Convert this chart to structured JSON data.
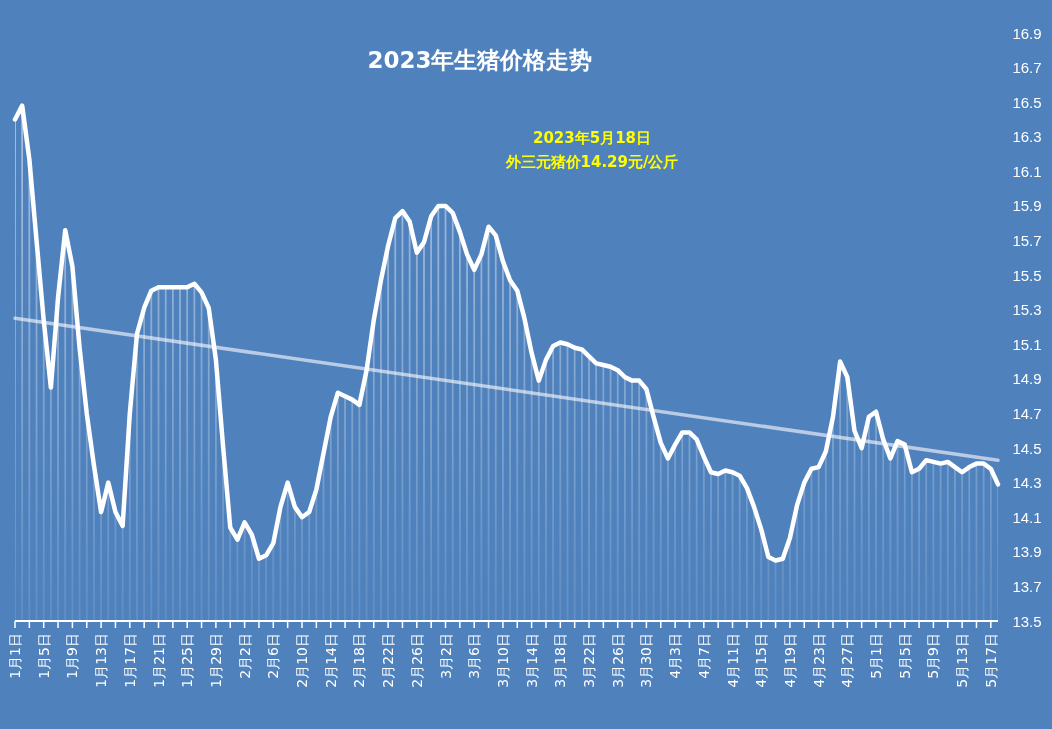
{
  "chart_data": {
    "type": "line",
    "title": "2023年生猪价格走势",
    "annotations": [
      "2023年5月18日",
      "外三元猪价14.29元/公斤"
    ],
    "x": [
      "2023-01-01",
      "2023-01-02",
      "2023-01-03",
      "2023-01-04",
      "2023-01-05",
      "2023-01-06",
      "2023-01-07",
      "2023-01-08",
      "2023-01-09",
      "2023-01-10",
      "2023-01-11",
      "2023-01-12",
      "2023-01-13",
      "2023-01-14",
      "2023-01-15",
      "2023-01-16",
      "2023-01-17",
      "2023-01-18",
      "2023-01-19",
      "2023-01-20",
      "2023-01-21",
      "2023-01-22",
      "2023-01-23",
      "2023-01-24",
      "2023-01-25",
      "2023-01-26",
      "2023-01-27",
      "2023-01-28",
      "2023-01-29",
      "2023-01-30",
      "2023-01-31",
      "2023-02-01",
      "2023-02-02",
      "2023-02-03",
      "2023-02-04",
      "2023-02-05",
      "2023-02-06",
      "2023-02-07",
      "2023-02-08",
      "2023-02-09",
      "2023-02-10",
      "2023-02-11",
      "2023-02-12",
      "2023-02-13",
      "2023-02-14",
      "2023-02-15",
      "2023-02-16",
      "2023-02-17",
      "2023-02-18",
      "2023-02-19",
      "2023-02-20",
      "2023-02-21",
      "2023-02-22",
      "2023-02-23",
      "2023-02-24",
      "2023-02-25",
      "2023-02-26",
      "2023-02-27",
      "2023-02-28",
      "2023-03-01",
      "2023-03-02",
      "2023-03-03",
      "2023-03-04",
      "2023-03-05",
      "2023-03-06",
      "2023-03-07",
      "2023-03-08",
      "2023-03-09",
      "2023-03-10",
      "2023-03-11",
      "2023-03-12",
      "2023-03-13",
      "2023-03-14",
      "2023-03-15",
      "2023-03-16",
      "2023-03-17",
      "2023-03-18",
      "2023-03-19",
      "2023-03-20",
      "2023-03-21",
      "2023-03-22",
      "2023-03-23",
      "2023-03-24",
      "2023-03-25",
      "2023-03-26",
      "2023-03-27",
      "2023-03-28",
      "2023-03-29",
      "2023-03-30",
      "2023-03-31",
      "2023-04-01",
      "2023-04-02",
      "2023-04-03",
      "2023-04-04",
      "2023-04-05",
      "2023-04-06",
      "2023-04-07",
      "2023-04-08",
      "2023-04-09",
      "2023-04-10",
      "2023-04-11",
      "2023-04-12",
      "2023-04-13",
      "2023-04-14",
      "2023-04-15",
      "2023-04-16",
      "2023-04-17",
      "2023-04-18",
      "2023-04-19",
      "2023-04-20",
      "2023-04-21",
      "2023-04-22",
      "2023-04-23",
      "2023-04-24",
      "2023-04-25",
      "2023-04-26",
      "2023-04-27",
      "2023-04-28",
      "2023-04-29",
      "2023-04-30",
      "2023-05-01",
      "2023-05-02",
      "2023-05-03",
      "2023-05-04",
      "2023-05-05",
      "2023-05-06",
      "2023-05-07",
      "2023-05-08",
      "2023-05-09",
      "2023-05-10",
      "2023-05-11",
      "2023-05-12",
      "2023-05-13",
      "2023-05-14",
      "2023-05-15",
      "2023-05-16",
      "2023-05-17",
      "2023-05-18"
    ],
    "series": [
      {
        "type": "area",
        "color": "#ffffff",
        "values": [
          16.4,
          16.48,
          16.17,
          15.7,
          15.24,
          14.85,
          15.37,
          15.76,
          15.55,
          15.08,
          14.7,
          14.4,
          14.13,
          14.3,
          14.13,
          14.05,
          14.7,
          15.16,
          15.31,
          15.41,
          15.43,
          15.43,
          15.43,
          15.43,
          15.43,
          15.45,
          15.4,
          15.31,
          15.01,
          14.51,
          14.04,
          13.97,
          14.07,
          14.0,
          13.86,
          13.88,
          13.95,
          14.16,
          14.3,
          14.16,
          14.1,
          14.13,
          14.26,
          14.47,
          14.68,
          14.82,
          14.8,
          14.78,
          14.75,
          14.95,
          15.24,
          15.47,
          15.67,
          15.83,
          15.87,
          15.81,
          15.63,
          15.69,
          15.84,
          15.9,
          15.9,
          15.86,
          15.75,
          15.62,
          15.53,
          15.62,
          15.78,
          15.73,
          15.58,
          15.47,
          15.41,
          15.25,
          15.05,
          14.89,
          15.01,
          15.09,
          15.11,
          15.1,
          15.08,
          15.07,
          15.03,
          14.99,
          14.98,
          14.97,
          14.95,
          14.91,
          14.89,
          14.89,
          14.84,
          14.68,
          14.53,
          14.44,
          14.52,
          14.59,
          14.59,
          14.55,
          14.45,
          14.36,
          14.35,
          14.37,
          14.36,
          14.34,
          14.27,
          14.16,
          14.03,
          13.87,
          13.85,
          13.86,
          13.98,
          14.17,
          14.3,
          14.38,
          14.39,
          14.48,
          14.68,
          15.0,
          14.91,
          14.6,
          14.5,
          14.68,
          14.71,
          14.55,
          14.44,
          14.54,
          14.52,
          14.36,
          14.38,
          14.43,
          14.42,
          14.41,
          14.42,
          14.39,
          14.36,
          14.39,
          14.41,
          14.41,
          14.38,
          14.29
        ]
      },
      {
        "color": "#b9cbe5",
        "x": [
          "2023-01-01",
          "2023-05-18"
        ],
        "values": [
          15.25,
          14.43
        ]
      }
    ],
    "xlim": [
      "2023-01-01",
      "2023-05-18"
    ],
    "xticks": [
      {
        "value": "2023-01-01",
        "label": "1月1日"
      },
      {
        "value": "2023-01-03",
        "label": null
      },
      {
        "value": "2023-01-05",
        "label": "1月5日"
      },
      {
        "value": "2023-01-07",
        "label": null
      },
      {
        "value": "2023-01-09",
        "label": "1月9日"
      },
      {
        "value": "2023-01-11",
        "label": null
      },
      {
        "value": "2023-01-13",
        "label": "1月13日"
      },
      {
        "value": "2023-01-15",
        "label": null
      },
      {
        "value": "2023-01-17",
        "label": "1月17日"
      },
      {
        "value": "2023-01-19",
        "label": null
      },
      {
        "value": "2023-01-21",
        "label": "1月21日"
      },
      {
        "value": "2023-01-23",
        "label": null
      },
      {
        "value": "2023-01-25",
        "label": "1月25日"
      },
      {
        "value": "2023-01-27",
        "label": null
      },
      {
        "value": "2023-01-29",
        "label": "1月29日"
      },
      {
        "value": "2023-01-31",
        "label": null
      },
      {
        "value": "2023-02-02",
        "label": "2月2日"
      },
      {
        "value": "2023-02-04",
        "label": null
      },
      {
        "value": "2023-02-06",
        "label": "2月6日"
      },
      {
        "value": "2023-02-08",
        "label": null
      },
      {
        "value": "2023-02-10",
        "label": "2月10日"
      },
      {
        "value": "2023-02-12",
        "label": null
      },
      {
        "value": "2023-02-14",
        "label": "2月14日"
      },
      {
        "value": "2023-02-16",
        "label": null
      },
      {
        "value": "2023-02-18",
        "label": "2月18日"
      },
      {
        "value": "2023-02-20",
        "label": null
      },
      {
        "value": "2023-02-22",
        "label": "2月22日"
      },
      {
        "value": "2023-02-24",
        "label": null
      },
      {
        "value": "2023-02-26",
        "label": "2月26日"
      },
      {
        "value": "2023-02-28",
        "label": null
      },
      {
        "value": "2023-03-02",
        "label": "3月2日"
      },
      {
        "value": "2023-03-04",
        "label": null
      },
      {
        "value": "2023-03-06",
        "label": "3月6日"
      },
      {
        "value": "2023-03-08",
        "label": null
      },
      {
        "value": "2023-03-10",
        "label": "3月10日"
      },
      {
        "value": "2023-03-12",
        "label": null
      },
      {
        "value": "2023-03-14",
        "label": "3月14日"
      },
      {
        "value": "2023-03-16",
        "label": null
      },
      {
        "value": "2023-03-18",
        "label": "3月18日"
      },
      {
        "value": "2023-03-20",
        "label": null
      },
      {
        "value": "2023-03-22",
        "label": "3月22日"
      },
      {
        "value": "2023-03-24",
        "label": null
      },
      {
        "value": "2023-03-26",
        "label": "3月26日"
      },
      {
        "value": "2023-03-28",
        "label": null
      },
      {
        "value": "2023-03-30",
        "label": "3月30日"
      },
      {
        "value": "2023-04-01",
        "label": null
      },
      {
        "value": "2023-04-03",
        "label": "4月3日"
      },
      {
        "value": "2023-04-05",
        "label": null
      },
      {
        "value": "2023-04-07",
        "label": "4月7日"
      },
      {
        "value": "2023-04-09",
        "label": null
      },
      {
        "value": "2023-04-11",
        "label": "4月11日"
      },
      {
        "value": "2023-04-13",
        "label": null
      },
      {
        "value": "2023-04-15",
        "label": "4月15日"
      },
      {
        "value": "2023-04-17",
        "label": null
      },
      {
        "value": "2023-04-19",
        "label": "4月19日"
      },
      {
        "value": "2023-04-21",
        "label": null
      },
      {
        "value": "2023-04-23",
        "label": "4月23日"
      },
      {
        "value": "2023-04-25",
        "label": null
      },
      {
        "value": "2023-04-27",
        "label": "4月27日"
      },
      {
        "value": "2023-04-29",
        "label": null
      },
      {
        "value": "2023-05-01",
        "label": "5月1日"
      },
      {
        "value": "2023-05-03",
        "label": null
      },
      {
        "value": "2023-05-05",
        "label": "5月5日"
      },
      {
        "value": "2023-05-07",
        "label": null
      },
      {
        "value": "2023-05-09",
        "label": "5月9日"
      },
      {
        "value": "2023-05-11",
        "label": null
      },
      {
        "value": "2023-05-13",
        "label": "5月13日"
      },
      {
        "value": "2023-05-15",
        "label": null
      },
      {
        "value": "2023-05-17",
        "label": "5月17日"
      }
    ],
    "ylim": [
      13.5,
      16.9
    ],
    "yticks": [
      13.5,
      13.7,
      13.9,
      14.1,
      14.3,
      14.5,
      14.7,
      14.9,
      15.1,
      15.3,
      15.5,
      15.7,
      15.9,
      16.1,
      16.3,
      16.5,
      16.7,
      16.9
    ]
  }
}
